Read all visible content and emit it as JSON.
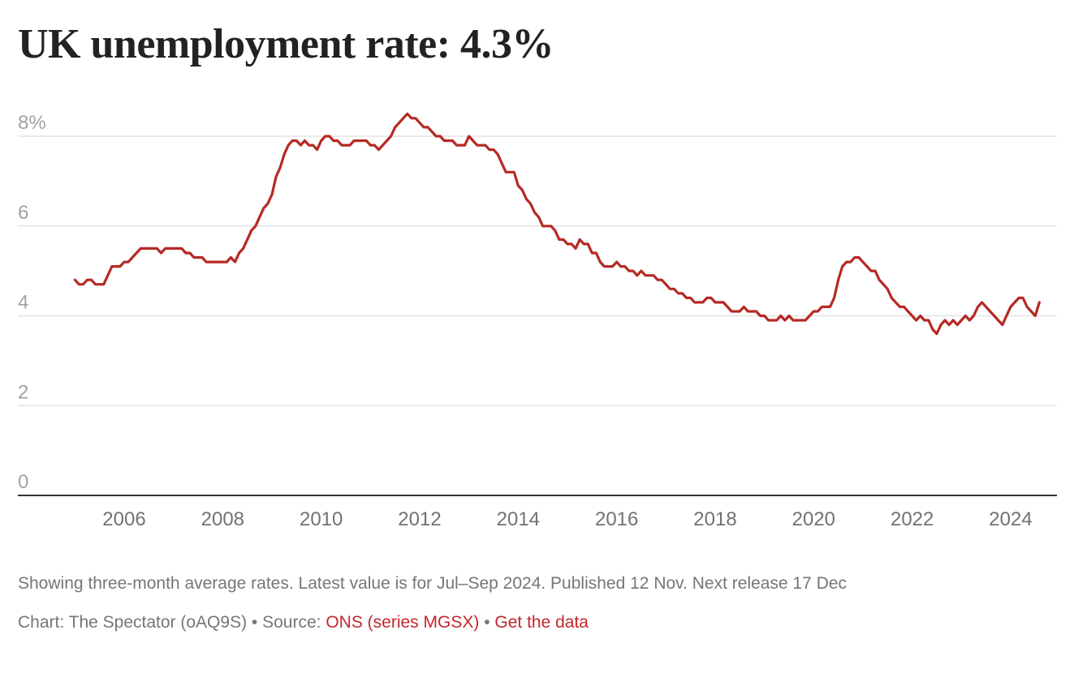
{
  "title": "UK unemployment rate: 4.3%",
  "footer": {
    "note": "Showing three-month average rates. Latest value is for Jul–Sep 2024. Published 12 Nov. Next release 17 Dec",
    "chart_credit": "Chart: The Spectator (oAQ9S)",
    "separator": " • ",
    "source_label": "Source: ",
    "source_link": "ONS (series MGSX)",
    "data_link": "Get the data"
  },
  "colors": {
    "line": "#b52a24",
    "link": "#c4262e",
    "grid": "#e3e3e3",
    "axis": "#333333"
  },
  "chart_data": {
    "type": "line",
    "title": "UK unemployment rate: 4.3%",
    "xlabel": "",
    "ylabel": "",
    "ylim": [
      0,
      8.5
    ],
    "xlim": [
      2004.6,
      2025.6
    ],
    "grid": true,
    "y_ticks": [
      0,
      2,
      4,
      6,
      8
    ],
    "y_tick_labels": [
      "0",
      "2",
      "4",
      "6",
      "8%"
    ],
    "x_ticks": [
      2006,
      2008,
      2010,
      2012,
      2014,
      2016,
      2018,
      2020,
      2022,
      2024
    ],
    "x_tick_labels": [
      "2006",
      "2008",
      "2010",
      "2012",
      "2014",
      "2016",
      "2018",
      "2020",
      "2022",
      "2024"
    ],
    "series": [
      {
        "name": "Unemployment rate (3-month average, %)",
        "x_start": 2005.0,
        "x_step_months": 1,
        "values": [
          4.8,
          4.7,
          4.7,
          4.8,
          4.8,
          4.7,
          4.7,
          4.7,
          4.9,
          5.1,
          5.1,
          5.1,
          5.2,
          5.2,
          5.3,
          5.4,
          5.5,
          5.5,
          5.5,
          5.5,
          5.5,
          5.4,
          5.5,
          5.5,
          5.5,
          5.5,
          5.5,
          5.4,
          5.4,
          5.3,
          5.3,
          5.3,
          5.2,
          5.2,
          5.2,
          5.2,
          5.2,
          5.2,
          5.3,
          5.2,
          5.4,
          5.5,
          5.7,
          5.9,
          6.0,
          6.2,
          6.4,
          6.5,
          6.7,
          7.1,
          7.3,
          7.6,
          7.8,
          7.9,
          7.9,
          7.8,
          7.9,
          7.8,
          7.8,
          7.7,
          7.9,
          8.0,
          8.0,
          7.9,
          7.9,
          7.8,
          7.8,
          7.8,
          7.9,
          7.9,
          7.9,
          7.9,
          7.8,
          7.8,
          7.7,
          7.8,
          7.9,
          8.0,
          8.2,
          8.3,
          8.4,
          8.5,
          8.4,
          8.4,
          8.3,
          8.2,
          8.2,
          8.1,
          8.0,
          8.0,
          7.9,
          7.9,
          7.9,
          7.8,
          7.8,
          7.8,
          8.0,
          7.9,
          7.8,
          7.8,
          7.8,
          7.7,
          7.7,
          7.6,
          7.4,
          7.2,
          7.2,
          7.2,
          6.9,
          6.8,
          6.6,
          6.5,
          6.3,
          6.2,
          6.0,
          6.0,
          6.0,
          5.9,
          5.7,
          5.7,
          5.6,
          5.6,
          5.5,
          5.7,
          5.6,
          5.6,
          5.4,
          5.4,
          5.2,
          5.1,
          5.1,
          5.1,
          5.2,
          5.1,
          5.1,
          5.0,
          5.0,
          4.9,
          5.0,
          4.9,
          4.9,
          4.9,
          4.8,
          4.8,
          4.7,
          4.6,
          4.6,
          4.5,
          4.5,
          4.4,
          4.4,
          4.3,
          4.3,
          4.3,
          4.4,
          4.4,
          4.3,
          4.3,
          4.3,
          4.2,
          4.1,
          4.1,
          4.1,
          4.2,
          4.1,
          4.1,
          4.1,
          4.0,
          4.0,
          3.9,
          3.9,
          3.9,
          4.0,
          3.9,
          4.0,
          3.9,
          3.9,
          3.9,
          3.9,
          4.0,
          4.1,
          4.1,
          4.2,
          4.2,
          4.2,
          4.4,
          4.8,
          5.1,
          5.2,
          5.2,
          5.3,
          5.3,
          5.2,
          5.1,
          5.0,
          5.0,
          4.8,
          4.7,
          4.6,
          4.4,
          4.3,
          4.2,
          4.2,
          4.1,
          4.0,
          3.9,
          4.0,
          3.9,
          3.9,
          3.7,
          3.6,
          3.8,
          3.9,
          3.8,
          3.9,
          3.8,
          3.9,
          4.0,
          3.9,
          4.0,
          4.2,
          4.3,
          4.2,
          4.1,
          4.0,
          3.9,
          3.8,
          4.0,
          4.2,
          4.3,
          4.4,
          4.4,
          4.2,
          4.1,
          4.0,
          4.3
        ]
      }
    ]
  }
}
